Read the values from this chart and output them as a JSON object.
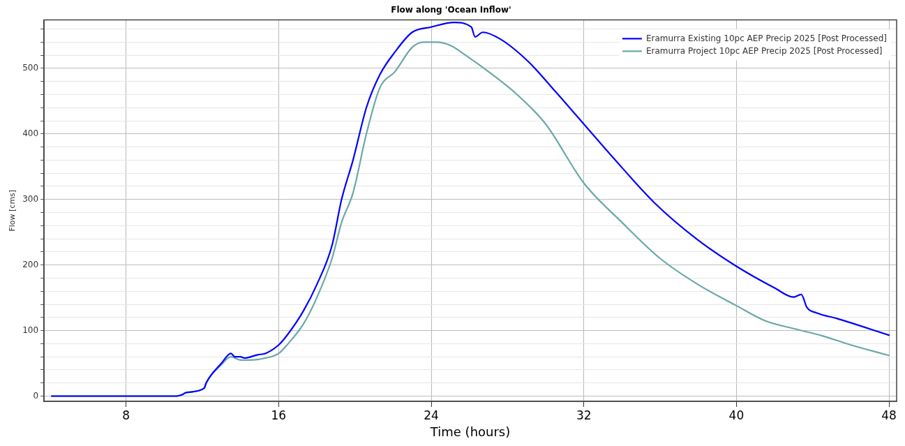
{
  "chart_data": {
    "type": "line",
    "title": "Flow along 'Ocean Inflow'",
    "xlabel": "Time (hours)",
    "ylabel": "Flow [cms]",
    "xlim": [
      3.7,
      48.4
    ],
    "ylim": [
      -8,
      574
    ],
    "xticks": [
      8,
      16,
      24,
      32,
      40,
      48
    ],
    "yticks": [
      0,
      {
        "value": 20,
        "label": null
      },
      {
        "value": 40,
        "label": null
      },
      {
        "value": 60,
        "label": null
      },
      {
        "value": 80,
        "label": null
      },
      100,
      {
        "value": 120,
        "label": null
      },
      {
        "value": 140,
        "label": null
      },
      {
        "value": 160,
        "label": null
      },
      {
        "value": 180,
        "label": null
      },
      200,
      {
        "value": 220,
        "label": null
      },
      {
        "value": 240,
        "label": null
      },
      {
        "value": 260,
        "label": null
      },
      {
        "value": 280,
        "label": null
      },
      300,
      {
        "value": 320,
        "label": null
      },
      {
        "value": 340,
        "label": null
      },
      {
        "value": 360,
        "label": null
      },
      {
        "value": 380,
        "label": null
      },
      400,
      {
        "value": 420,
        "label": null
      },
      {
        "value": 440,
        "label": null
      },
      {
        "value": 460,
        "label": null
      },
      {
        "value": 480,
        "label": null
      },
      500,
      {
        "value": 520,
        "label": null
      },
      {
        "value": 540,
        "label": null
      },
      {
        "value": 560,
        "label": null
      }
    ],
    "grid": true,
    "legend": "top right",
    "marker": "none",
    "line_style": "solid",
    "series": [
      {
        "name": "Eramurra Existing 10pc AEP Precip 2025 [Post Processed]",
        "color": "#0000ff",
        "x": [
          4.1,
          10.6,
          11.0,
          11.1,
          12.1,
          12.2,
          13.0,
          13.5,
          13.7,
          14.0,
          14.2,
          14.9,
          15.3,
          16.0,
          16.5,
          17.3,
          18.0,
          18.8,
          19.3,
          19.9,
          20.6,
          21.3,
          22.1,
          23.0,
          24.0,
          25.2,
          26.1,
          26.3,
          26.7,
          27.6,
          29.1,
          30.5,
          32.0,
          33.5,
          35.7,
          37.9,
          40.0,
          42.0,
          43.0,
          43.4,
          43.7,
          44.2,
          45.3,
          48.0
        ],
        "values": [
          0,
          0,
          3,
          5,
          12,
          20,
          50,
          65,
          60,
          60,
          58,
          63,
          65,
          78,
          95,
          130,
          170,
          230,
          300,
          360,
          440,
          490,
          525,
          555,
          563,
          570,
          563,
          548,
          555,
          545,
          510,
          465,
          415,
          365,
          295,
          240,
          198,
          165,
          151,
          155,
          135,
          127,
          118,
          93
        ]
      },
      {
        "name": "Eramurra Project 10pc AEP Precip 2025 [Post Processed]",
        "color": "#6aa8a8",
        "x": [
          4.1,
          10.6,
          11.0,
          11.1,
          12.1,
          12.2,
          13.0,
          13.5,
          14.0,
          14.5,
          15.3,
          16.0,
          16.5,
          17.3,
          18.0,
          18.8,
          19.3,
          19.9,
          20.6,
          21.3,
          22.1,
          23.0,
          23.6,
          24.3,
          25.0,
          25.8,
          27.0,
          28.5,
          30.0,
          32.0,
          34.0,
          36.0,
          38.0,
          40.0,
          41.5,
          43.0,
          44.5,
          46.0,
          48.0
        ],
        "values": [
          0,
          0,
          3,
          5,
          12,
          20,
          48,
          60,
          55,
          55,
          58,
          65,
          80,
          110,
          150,
          210,
          265,
          310,
          400,
          470,
          495,
          532,
          540,
          540,
          535,
          520,
          495,
          460,
          415,
          325,
          265,
          210,
          170,
          138,
          115,
          103,
          92,
          78,
          62
        ]
      }
    ]
  }
}
